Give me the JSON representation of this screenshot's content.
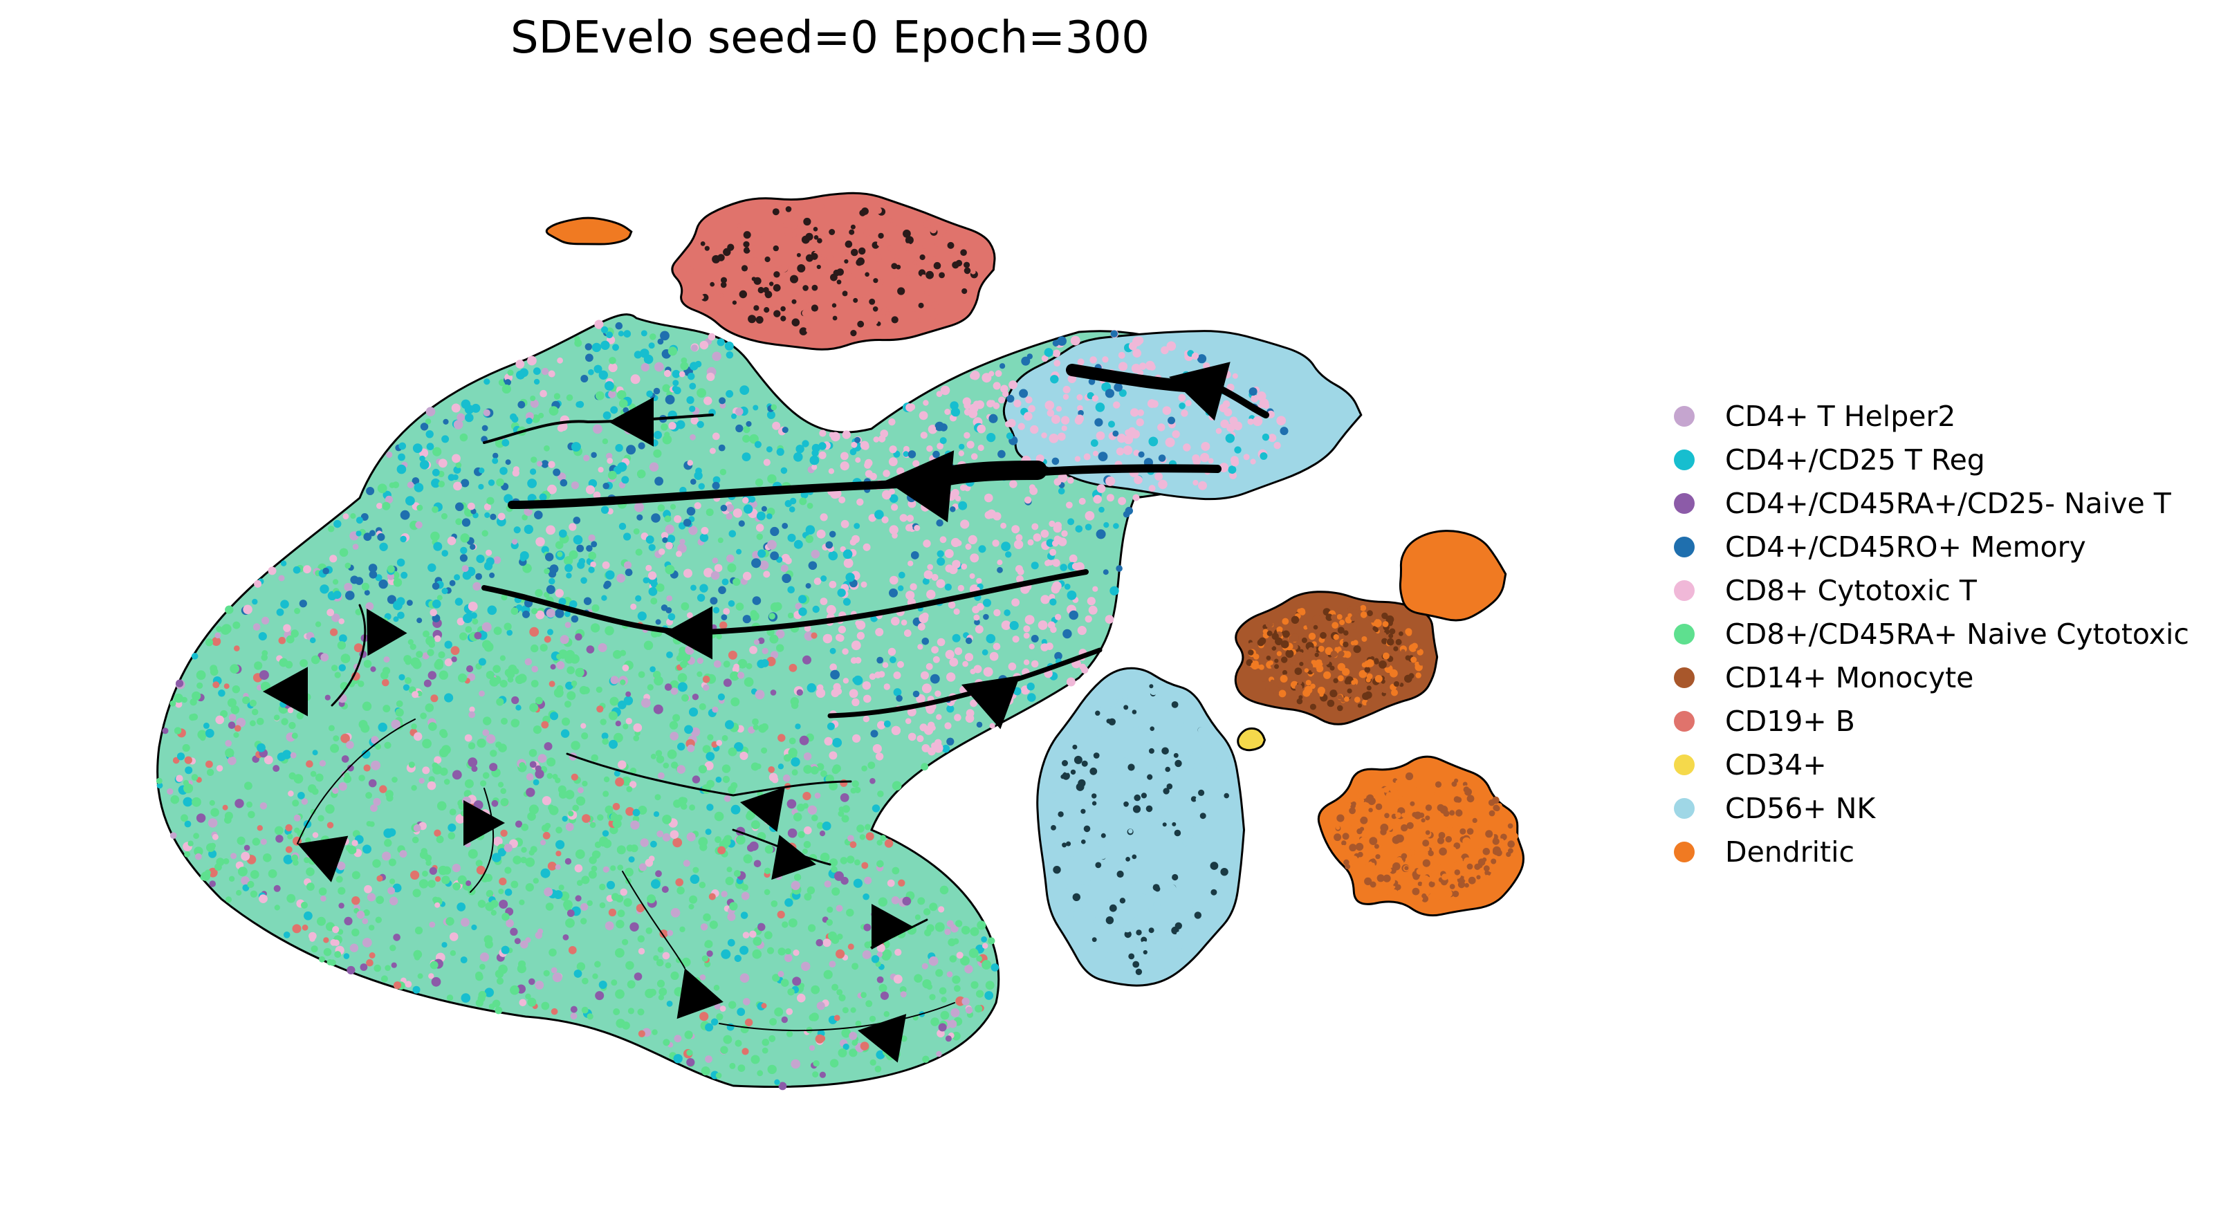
{
  "chart_data": {
    "type": "scatter",
    "title": "SDEvelo seed=0 Epoch=300",
    "xlabel": "",
    "ylabel": "",
    "axes_visible": false,
    "grid": false,
    "legend_position": "right",
    "overlay": "velocity streamlines with black arrowheads",
    "series": [
      {
        "name": "CD4+ T Helper2",
        "color": "#c5a5cf"
      },
      {
        "name": "CD4+/CD25 T Reg",
        "color": "#17becf"
      },
      {
        "name": "CD4+/CD45RA+/CD25- Naive T",
        "color": "#8c5ba8"
      },
      {
        "name": "CD4+/CD45RO+ Memory",
        "color": "#1f6fae"
      },
      {
        "name": "CD8+ Cytotoxic T",
        "color": "#f0b8d8"
      },
      {
        "name": "CD8+/CD45RA+ Naive Cytotoxic",
        "color": "#5ee08f"
      },
      {
        "name": "CD14+ Monocyte",
        "color": "#a8572b"
      },
      {
        "name": "CD19+ B",
        "color": "#e0736c"
      },
      {
        "name": "CD34+",
        "color": "#f5d94b"
      },
      {
        "name": "CD56+ NK",
        "color": "#9fd7e6"
      },
      {
        "name": "Dendritic",
        "color": "#f07a22"
      }
    ]
  }
}
